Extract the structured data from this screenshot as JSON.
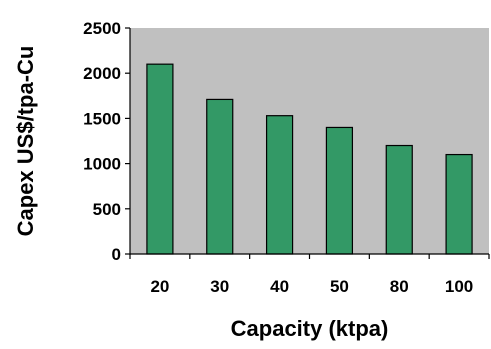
{
  "chart_data": {
    "type": "bar",
    "categories": [
      "20",
      "30",
      "40",
      "50",
      "80",
      "100"
    ],
    "values": [
      2100,
      1710,
      1530,
      1400,
      1200,
      1100
    ],
    "title": "",
    "xlabel": "Capacity (ktpa)",
    "ylabel": "Capex US$/tpa-Cu",
    "ylim": [
      0,
      2500
    ],
    "yticks": [
      0,
      500,
      1000,
      1500,
      2000,
      2500
    ],
    "grid": false,
    "legend": "none",
    "colors": {
      "bar_fill": "#339966",
      "bar_stroke": "#000000",
      "plot_background": "#c0c0c0",
      "page_background": "#ffffff"
    }
  }
}
